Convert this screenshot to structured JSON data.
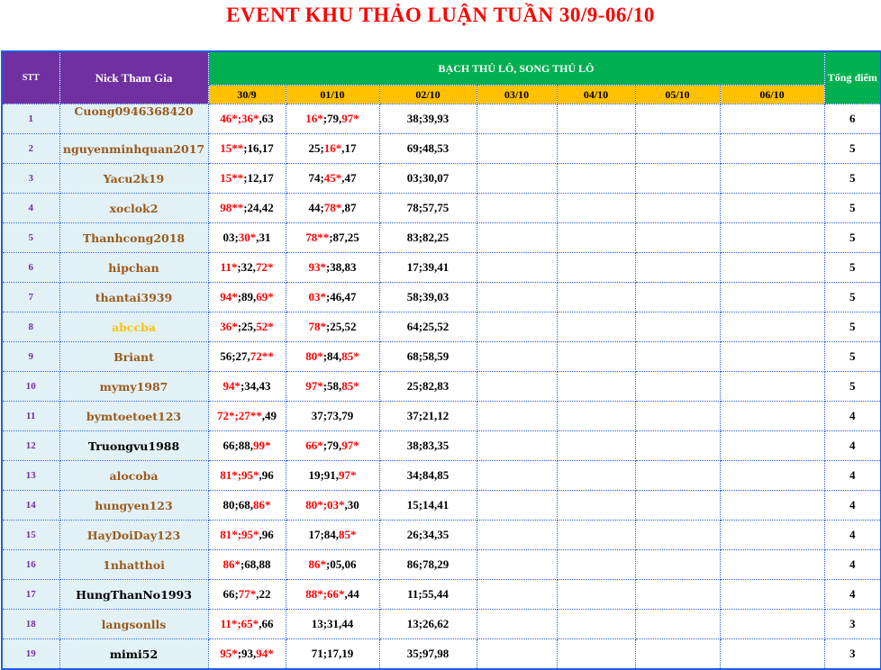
{
  "title": "EVENT KHU THẢO LUẬN TUẦN 30/9-06/10",
  "header": {
    "stt": "STT",
    "nick": "Nick Tham Gia",
    "group": "BẠCH THỦ LÔ, SONG THỦ LÔ",
    "total": "Tổng điểm",
    "dates": [
      "30/9",
      "01/10",
      "02/10",
      "03/10",
      "04/10",
      "05/10",
      "06/10"
    ]
  },
  "colors": {
    "hit": "#ff0000",
    "nick_default": "#9c5a1a",
    "stt": "#7030a0",
    "header_purple": "#7030a0",
    "header_green": "#00b050",
    "header_yellow": "#ffc000"
  },
  "rows": [
    {
      "stt": "1",
      "nick": "Cuong0946368420",
      "nick_color": "#9c5a1a",
      "cells": [
        [
          [
            "46*;36*",
            "r"
          ],
          [
            ",63",
            "k"
          ]
        ],
        [
          [
            "16*",
            "r"
          ],
          [
            ";79,",
            "k"
          ],
          [
            "97*",
            "r"
          ]
        ],
        [
          [
            "38;39,93",
            "k"
          ]
        ]
      ],
      "total": "6"
    },
    {
      "stt": "2",
      "nick": "nguyenminhquan2017",
      "nick_color": "#9c5a1a",
      "cells": [
        [
          [
            "15**",
            "r"
          ],
          [
            ";16,17",
            "k"
          ]
        ],
        [
          [
            "25;",
            "k"
          ],
          [
            "16*",
            "r"
          ],
          [
            ",17",
            "k"
          ]
        ],
        [
          [
            "69;48,53",
            "k"
          ]
        ]
      ],
      "total": "5"
    },
    {
      "stt": "3",
      "nick": "Yacu2k19",
      "nick_color": "#9c5a1a",
      "cells": [
        [
          [
            "15**",
            "r"
          ],
          [
            ";12,17",
            "k"
          ]
        ],
        [
          [
            "74;",
            "k"
          ],
          [
            "45*",
            "r"
          ],
          [
            ",47",
            "k"
          ]
        ],
        [
          [
            "03;30,07",
            "k"
          ]
        ]
      ],
      "total": "5"
    },
    {
      "stt": "4",
      "nick": "xoclok2",
      "nick_color": "#9c5a1a",
      "cells": [
        [
          [
            "98**",
            "r"
          ],
          [
            ";24,42",
            "k"
          ]
        ],
        [
          [
            "44;",
            "k"
          ],
          [
            "78*",
            "r"
          ],
          [
            ",87",
            "k"
          ]
        ],
        [
          [
            "78;57,75",
            "k"
          ]
        ]
      ],
      "total": "5"
    },
    {
      "stt": "5",
      "nick": "Thanhcong2018",
      "nick_color": "#9c5a1a",
      "cells": [
        [
          [
            "03;",
            "k"
          ],
          [
            "30*",
            "r"
          ],
          [
            ",31",
            "k"
          ]
        ],
        [
          [
            "78**",
            "r"
          ],
          [
            ";87,25",
            "k"
          ]
        ],
        [
          [
            "83;82,25",
            "k"
          ]
        ]
      ],
      "total": "5"
    },
    {
      "stt": "6",
      "nick": "hipchan",
      "nick_color": "#9c5a1a",
      "cells": [
        [
          [
            "11*",
            "r"
          ],
          [
            ";32,",
            "k"
          ],
          [
            "72*",
            "r"
          ]
        ],
        [
          [
            "93*",
            "r"
          ],
          [
            ";38,83",
            "k"
          ]
        ],
        [
          [
            "17;39,41",
            "k"
          ]
        ]
      ],
      "total": "5"
    },
    {
      "stt": "7",
      "nick": "thantai3939",
      "nick_color": "#9c5a1a",
      "cells": [
        [
          [
            "94*",
            "r"
          ],
          [
            ";89,",
            "k"
          ],
          [
            "69*",
            "r"
          ]
        ],
        [
          [
            "03*",
            "r"
          ],
          [
            ";46,47",
            "k"
          ]
        ],
        [
          [
            "58;39,03",
            "k"
          ]
        ]
      ],
      "total": "5"
    },
    {
      "stt": "8",
      "nick": "abccba",
      "nick_color": "#ffc000",
      "cells": [
        [
          [
            "36*",
            "r"
          ],
          [
            ";25,",
            "k"
          ],
          [
            "52*",
            "r"
          ]
        ],
        [
          [
            "78*",
            "r"
          ],
          [
            ";25,52",
            "k"
          ]
        ],
        [
          [
            "64;25,52",
            "k"
          ]
        ]
      ],
      "total": "5"
    },
    {
      "stt": "9",
      "nick": "Briant",
      "nick_color": "#9c5a1a",
      "cells": [
        [
          [
            "56;27,",
            "k"
          ],
          [
            "72**",
            "r"
          ]
        ],
        [
          [
            "80*",
            "r"
          ],
          [
            ";84,",
            "k"
          ],
          [
            "85*",
            "r"
          ]
        ],
        [
          [
            "68;58,59",
            "k"
          ]
        ]
      ],
      "total": "5"
    },
    {
      "stt": "10",
      "nick": "mymy1987",
      "nick_color": "#9c5a1a",
      "cells": [
        [
          [
            "94*",
            "r"
          ],
          [
            ";34,43",
            "k"
          ]
        ],
        [
          [
            "97*",
            "r"
          ],
          [
            ";58,",
            "k"
          ],
          [
            "85*",
            "r"
          ]
        ],
        [
          [
            "25;82,83",
            "k"
          ]
        ]
      ],
      "total": "5"
    },
    {
      "stt": "11",
      "nick": "bymtoetoet123",
      "nick_color": "#9c5a1a",
      "cells": [
        [
          [
            "72*;27**",
            "r"
          ],
          [
            ",49",
            "k"
          ]
        ],
        [
          [
            "37;73,79",
            "k"
          ]
        ],
        [
          [
            "37;21,12",
            "k"
          ]
        ]
      ],
      "total": "4"
    },
    {
      "stt": "12",
      "nick": "Truongvu1988",
      "nick_color": "#000000",
      "cells": [
        [
          [
            "66;88,",
            "k"
          ],
          [
            "99*",
            "r"
          ]
        ],
        [
          [
            "66*",
            "r"
          ],
          [
            ";79,",
            "k"
          ],
          [
            "97*",
            "r"
          ]
        ],
        [
          [
            "38;83,35",
            "k"
          ]
        ]
      ],
      "total": "4"
    },
    {
      "stt": "13",
      "nick": "alocoba",
      "nick_color": "#9c5a1a",
      "cells": [
        [
          [
            "81*;95*",
            "r"
          ],
          [
            ",96",
            "k"
          ]
        ],
        [
          [
            "19;91,",
            "k"
          ],
          [
            "97*",
            "r"
          ]
        ],
        [
          [
            "34;84,85",
            "k"
          ]
        ]
      ],
      "total": "4"
    },
    {
      "stt": "14",
      "nick": "hungyen123",
      "nick_color": "#9c5a1a",
      "cells": [
        [
          [
            "80;68,",
            "k"
          ],
          [
            "86*",
            "r"
          ]
        ],
        [
          [
            "80*;03*",
            "r"
          ],
          [
            ",30",
            "k"
          ]
        ],
        [
          [
            "15;14,41",
            "k"
          ]
        ]
      ],
      "total": "4"
    },
    {
      "stt": "15",
      "nick": "HayDoiDay123",
      "nick_color": "#9c5a1a",
      "cells": [
        [
          [
            "81*;95*",
            "r"
          ],
          [
            ",96",
            "k"
          ]
        ],
        [
          [
            "17;84,",
            "k"
          ],
          [
            "85*",
            "r"
          ]
        ],
        [
          [
            "26;34,35",
            "k"
          ]
        ]
      ],
      "total": "4"
    },
    {
      "stt": "16",
      "nick": "1nhatthoi",
      "nick_color": "#9c5a1a",
      "cells": [
        [
          [
            "86*",
            "r"
          ],
          [
            ";68,88",
            "k"
          ]
        ],
        [
          [
            "86*",
            "r"
          ],
          [
            ";05,06",
            "k"
          ]
        ],
        [
          [
            "86;78,29",
            "k"
          ]
        ]
      ],
      "total": "4"
    },
    {
      "stt": "17",
      "nick": "HungThanNo1993",
      "nick_color": "#000000",
      "cells": [
        [
          [
            "66;",
            "k"
          ],
          [
            "77*",
            "r"
          ],
          [
            ",22",
            "k"
          ]
        ],
        [
          [
            "88*;66*",
            "r"
          ],
          [
            ",44",
            "k"
          ]
        ],
        [
          [
            "11;55,44",
            "k"
          ]
        ]
      ],
      "total": "4"
    },
    {
      "stt": "18",
      "nick": "langsonlls",
      "nick_color": "#9c5a1a",
      "cells": [
        [
          [
            "11*;65*",
            "r"
          ],
          [
            ",66",
            "k"
          ]
        ],
        [
          [
            "13;31,44",
            "k"
          ]
        ],
        [
          [
            "13;26,62",
            "k"
          ]
        ]
      ],
      "total": "3"
    },
    {
      "stt": "19",
      "nick": "mimi52",
      "nick_color": "#000000",
      "cells": [
        [
          [
            "95*",
            "r"
          ],
          [
            ";93,",
            "k"
          ],
          [
            "94*",
            "r"
          ]
        ],
        [
          [
            "71;17,19",
            "k"
          ]
        ],
        [
          [
            "35;97,98",
            "k"
          ]
        ]
      ],
      "total": "3"
    }
  ]
}
